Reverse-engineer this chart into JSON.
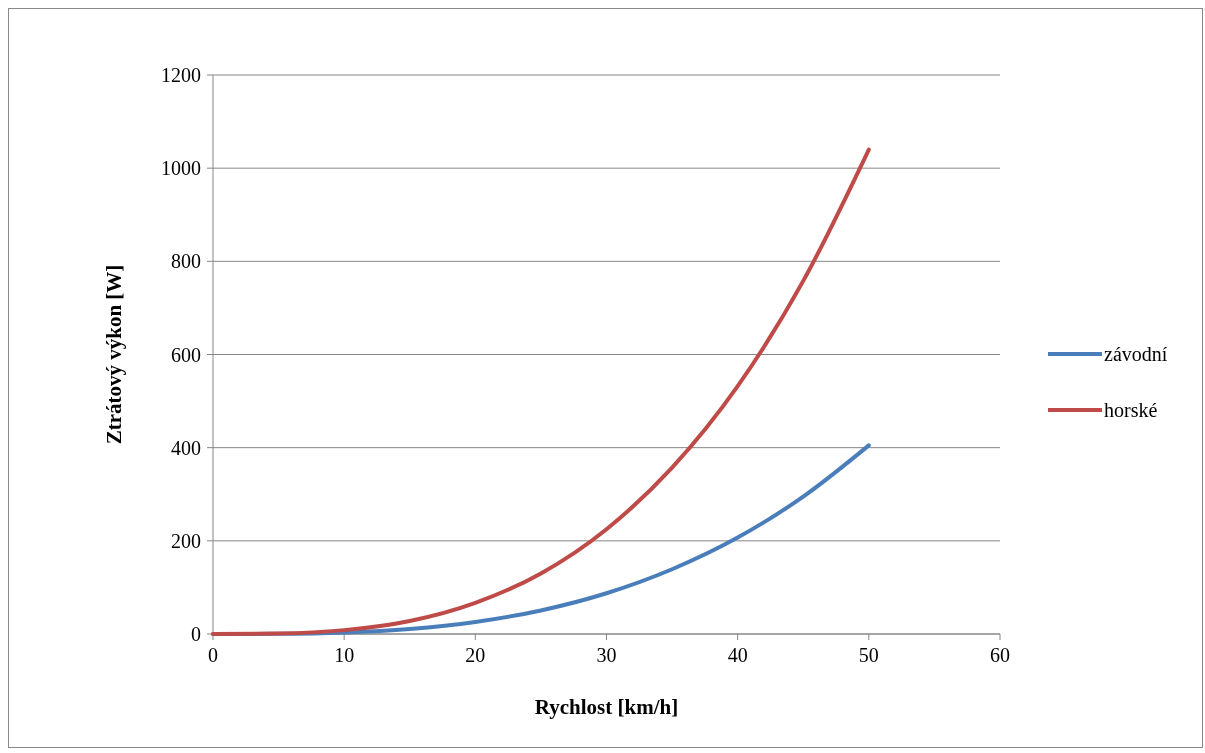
{
  "chart_data": {
    "type": "line",
    "xlabel": "Rychlost [km/h]",
    "ylabel": "Ztrátový výkon [W]",
    "x": [
      0,
      5,
      10,
      15,
      20,
      25,
      30,
      35,
      40,
      45,
      50
    ],
    "series": [
      {
        "name": "závodní",
        "color": "#4a7ebb",
        "values": [
          0,
          0.4,
          3.2,
          10.9,
          25.9,
          50.6,
          87.5,
          139,
          207,
          295,
          405
        ]
      },
      {
        "name": "horské",
        "color": "#be4b48",
        "values": [
          0,
          1,
          8.3,
          28,
          67,
          130,
          225,
          357,
          532,
          758,
          1040
        ]
      }
    ],
    "xlim": [
      0,
      60
    ],
    "xticks": [
      0,
      10,
      20,
      30,
      40,
      50,
      60
    ],
    "ylim": [
      0,
      1200
    ],
    "yticks": [
      0,
      200,
      400,
      600,
      800,
      1000,
      1200
    ],
    "grid": "y",
    "legend": "right",
    "marker": "none",
    "line_style": "solid"
  }
}
